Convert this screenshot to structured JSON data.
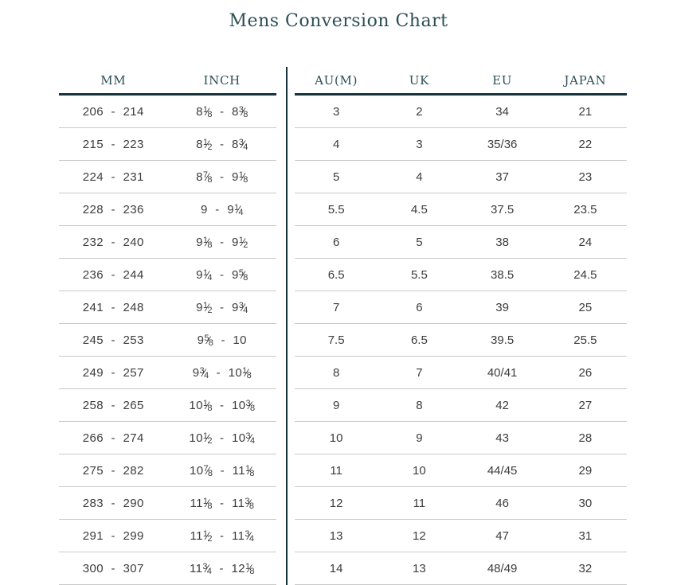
{
  "title": "Mens Conversion Chart",
  "chart_data": {
    "type": "table",
    "title": "Mens Conversion Chart",
    "left_columns": [
      "MM",
      "INCH"
    ],
    "right_columns": [
      "AU(M)",
      "UK",
      "EU",
      "JAPAN"
    ],
    "rows": [
      {
        "mm": "206 - 214",
        "inch": "8 1/8 - 8 3/8",
        "au_m": "3",
        "uk": "2",
        "eu": "34",
        "japan": "21"
      },
      {
        "mm": "215 - 223",
        "inch": "8 1/2 - 8 3/4",
        "au_m": "4",
        "uk": "3",
        "eu": "35/36",
        "japan": "22"
      },
      {
        "mm": "224 - 231",
        "inch": "8 7/8 - 9 1/8",
        "au_m": "5",
        "uk": "4",
        "eu": "37",
        "japan": "23"
      },
      {
        "mm": "228 - 236",
        "inch": "9 - 9 1/4",
        "au_m": "5.5",
        "uk": "4.5",
        "eu": "37.5",
        "japan": "23.5"
      },
      {
        "mm": "232 - 240",
        "inch": "9 1/8 - 9 1/2",
        "au_m": "6",
        "uk": "5",
        "eu": "38",
        "japan": "24"
      },
      {
        "mm": "236 - 244",
        "inch": "9 1/4 - 9 5/8",
        "au_m": "6.5",
        "uk": "5.5",
        "eu": "38.5",
        "japan": "24.5"
      },
      {
        "mm": "241 - 248",
        "inch": "9 1/2 - 9 3/4",
        "au_m": "7",
        "uk": "6",
        "eu": "39",
        "japan": "25"
      },
      {
        "mm": "245 - 253",
        "inch": "9 5/8 - 10",
        "au_m": "7.5",
        "uk": "6.5",
        "eu": "39.5",
        "japan": "25.5"
      },
      {
        "mm": "249 - 257",
        "inch": "9 3/4 - 10 1/8",
        "au_m": "8",
        "uk": "7",
        "eu": "40/41",
        "japan": "26"
      },
      {
        "mm": "258 - 265",
        "inch": "10 1/8 - 10 3/8",
        "au_m": "9",
        "uk": "8",
        "eu": "42",
        "japan": "27"
      },
      {
        "mm": "266 - 274",
        "inch": "10 1/2 - 10 3/4",
        "au_m": "10",
        "uk": "9",
        "eu": "43",
        "japan": "28"
      },
      {
        "mm": "275 - 282",
        "inch": "10 7/8 - 11 1/8",
        "au_m": "11",
        "uk": "10",
        "eu": "44/45",
        "japan": "29"
      },
      {
        "mm": "283 - 290",
        "inch": "11 1/8 - 11 3/8",
        "au_m": "12",
        "uk": "11",
        "eu": "46",
        "japan": "30"
      },
      {
        "mm": "291 - 299",
        "inch": "11 1/2 - 11 3/4",
        "au_m": "13",
        "uk": "12",
        "eu": "47",
        "japan": "31"
      },
      {
        "mm": "300 - 307",
        "inch": "11 3/4 - 12 1/8",
        "au_m": "14",
        "uk": "13",
        "eu": "48/49",
        "japan": "32"
      }
    ]
  },
  "colors": {
    "heading": "#2c4e56",
    "rule": "#16343e",
    "separator": "#c9c9c9",
    "text": "#3c3c3c"
  }
}
